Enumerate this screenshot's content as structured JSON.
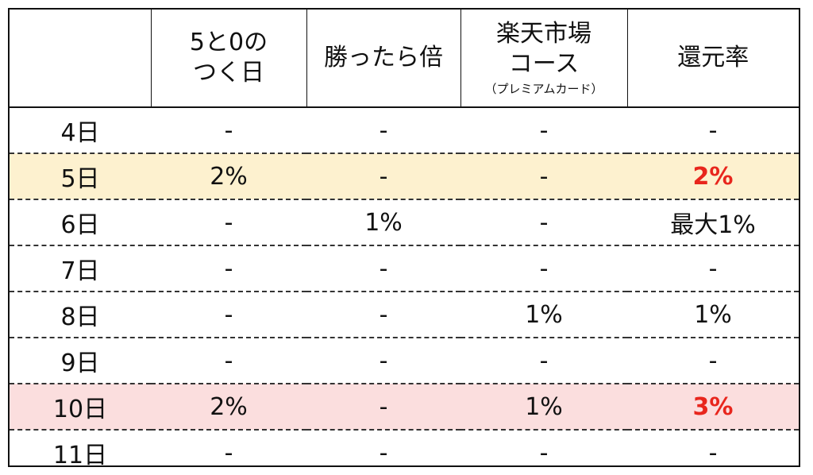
{
  "headers": [
    {
      "lines": [
        ""
      ],
      "sub": ""
    },
    {
      "lines": [
        "5と0の",
        "つく日"
      ],
      "sub": ""
    },
    {
      "lines": [
        "勝ったら倍"
      ],
      "sub": ""
    },
    {
      "lines": [
        "楽天市場",
        "コース"
      ],
      "sub": "（プレミアムカード）"
    },
    {
      "lines": [
        "還元率"
      ],
      "sub": ""
    }
  ],
  "rows": [
    {
      "day": "4日",
      "five_zero": "-",
      "win_double": "-",
      "rakuten_course": "-",
      "rate": "-",
      "highlight": "",
      "rate_red": false
    },
    {
      "day": "5日",
      "five_zero": "2%",
      "win_double": "-",
      "rakuten_course": "-",
      "rate": "2%",
      "highlight": "yellow",
      "rate_red": true
    },
    {
      "day": "6日",
      "five_zero": "-",
      "win_double": "1%",
      "rakuten_course": "-",
      "rate": "最大1%",
      "highlight": "",
      "rate_red": false
    },
    {
      "day": "7日",
      "five_zero": "-",
      "win_double": "-",
      "rakuten_course": "-",
      "rate": "-",
      "highlight": "",
      "rate_red": false
    },
    {
      "day": "8日",
      "five_zero": "-",
      "win_double": "-",
      "rakuten_course": "1%",
      "rate": "1%",
      "highlight": "",
      "rate_red": false
    },
    {
      "day": "9日",
      "five_zero": "-",
      "win_double": "-",
      "rakuten_course": "-",
      "rate": "-",
      "highlight": "",
      "rate_red": false
    },
    {
      "day": "10日",
      "five_zero": "2%",
      "win_double": "-",
      "rakuten_course": "1%",
      "rate": "3%",
      "highlight": "pink",
      "rate_red": true
    },
    {
      "day": "11日",
      "five_zero": "-",
      "win_double": "-",
      "rakuten_course": "-",
      "rate": "-",
      "highlight": "",
      "rate_red": false
    }
  ],
  "colors": {
    "yellow_highlight": "#fdf1cf",
    "pink_highlight": "#fbdede",
    "emphasis_red": "#e8261d"
  }
}
